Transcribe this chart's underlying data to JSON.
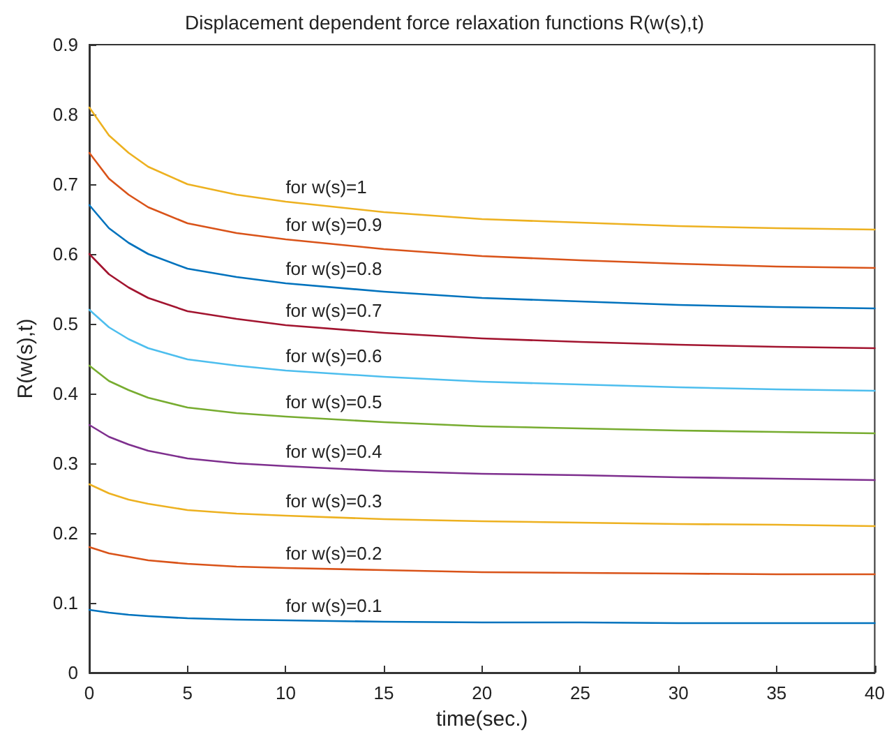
{
  "chart_data": {
    "type": "line",
    "title": "Displacement dependent force relaxation functions R(w(s),t)",
    "xlabel": "time(sec.)",
    "ylabel": "R(w(s),t)",
    "x": [
      0,
      1,
      2,
      3,
      5,
      7.5,
      10,
      15,
      20,
      25,
      30,
      35,
      40
    ],
    "series": [
      {
        "name": "for w(s)=0.1",
        "color": "#0072bd",
        "values": [
          0.09,
          0.086,
          0.083,
          0.081,
          0.078,
          0.076,
          0.075,
          0.073,
          0.072,
          0.072,
          0.071,
          0.071,
          0.071
        ]
      },
      {
        "name": "for w(s)=0.2",
        "color": "#d95319",
        "values": [
          0.18,
          0.171,
          0.166,
          0.161,
          0.156,
          0.152,
          0.15,
          0.147,
          0.144,
          0.143,
          0.142,
          0.141,
          0.141
        ]
      },
      {
        "name": "for w(s)=0.3",
        "color": "#edb120",
        "values": [
          0.27,
          0.257,
          0.248,
          0.242,
          0.233,
          0.228,
          0.225,
          0.22,
          0.217,
          0.215,
          0.213,
          0.212,
          0.21
        ]
      },
      {
        "name": "for w(s)=0.4",
        "color": "#7e2f8e",
        "values": [
          0.355,
          0.338,
          0.327,
          0.318,
          0.307,
          0.3,
          0.296,
          0.289,
          0.285,
          0.283,
          0.28,
          0.278,
          0.276
        ]
      },
      {
        "name": "for w(s)=0.5",
        "color": "#77ac30",
        "values": [
          0.44,
          0.418,
          0.405,
          0.394,
          0.38,
          0.372,
          0.367,
          0.359,
          0.353,
          0.35,
          0.347,
          0.345,
          0.343
        ]
      },
      {
        "name": "for w(s)=0.6",
        "color": "#4dbeee",
        "values": [
          0.52,
          0.495,
          0.478,
          0.465,
          0.449,
          0.44,
          0.433,
          0.424,
          0.417,
          0.413,
          0.409,
          0.406,
          0.404
        ]
      },
      {
        "name": "for w(s)=0.7",
        "color": "#a2142f",
        "values": [
          0.6,
          0.571,
          0.552,
          0.537,
          0.518,
          0.507,
          0.498,
          0.487,
          0.479,
          0.474,
          0.47,
          0.467,
          0.465
        ]
      },
      {
        "name": "for w(s)=0.8",
        "color": "#0072bd",
        "values": [
          0.67,
          0.637,
          0.616,
          0.6,
          0.579,
          0.567,
          0.558,
          0.546,
          0.537,
          0.532,
          0.527,
          0.524,
          0.522
        ]
      },
      {
        "name": "for w(s)=0.9",
        "color": "#d95319",
        "values": [
          0.745,
          0.708,
          0.685,
          0.667,
          0.644,
          0.63,
          0.621,
          0.607,
          0.597,
          0.591,
          0.586,
          0.582,
          0.58
        ]
      },
      {
        "name": "for w(s)=1",
        "color": "#edb120",
        "values": [
          0.81,
          0.77,
          0.745,
          0.725,
          0.7,
          0.685,
          0.675,
          0.66,
          0.65,
          0.645,
          0.64,
          0.637,
          0.635
        ]
      }
    ],
    "xlim": [
      0,
      40
    ],
    "xticks": [
      0,
      5,
      10,
      15,
      20,
      25,
      30,
      35,
      40
    ],
    "ylim": [
      0,
      0.9
    ],
    "yticks": [
      0,
      0.1,
      0.2,
      0.3,
      0.4,
      0.5,
      0.6,
      0.7,
      0.8,
      0.9
    ],
    "grid": false,
    "marker": "none",
    "line_style": "solid"
  }
}
